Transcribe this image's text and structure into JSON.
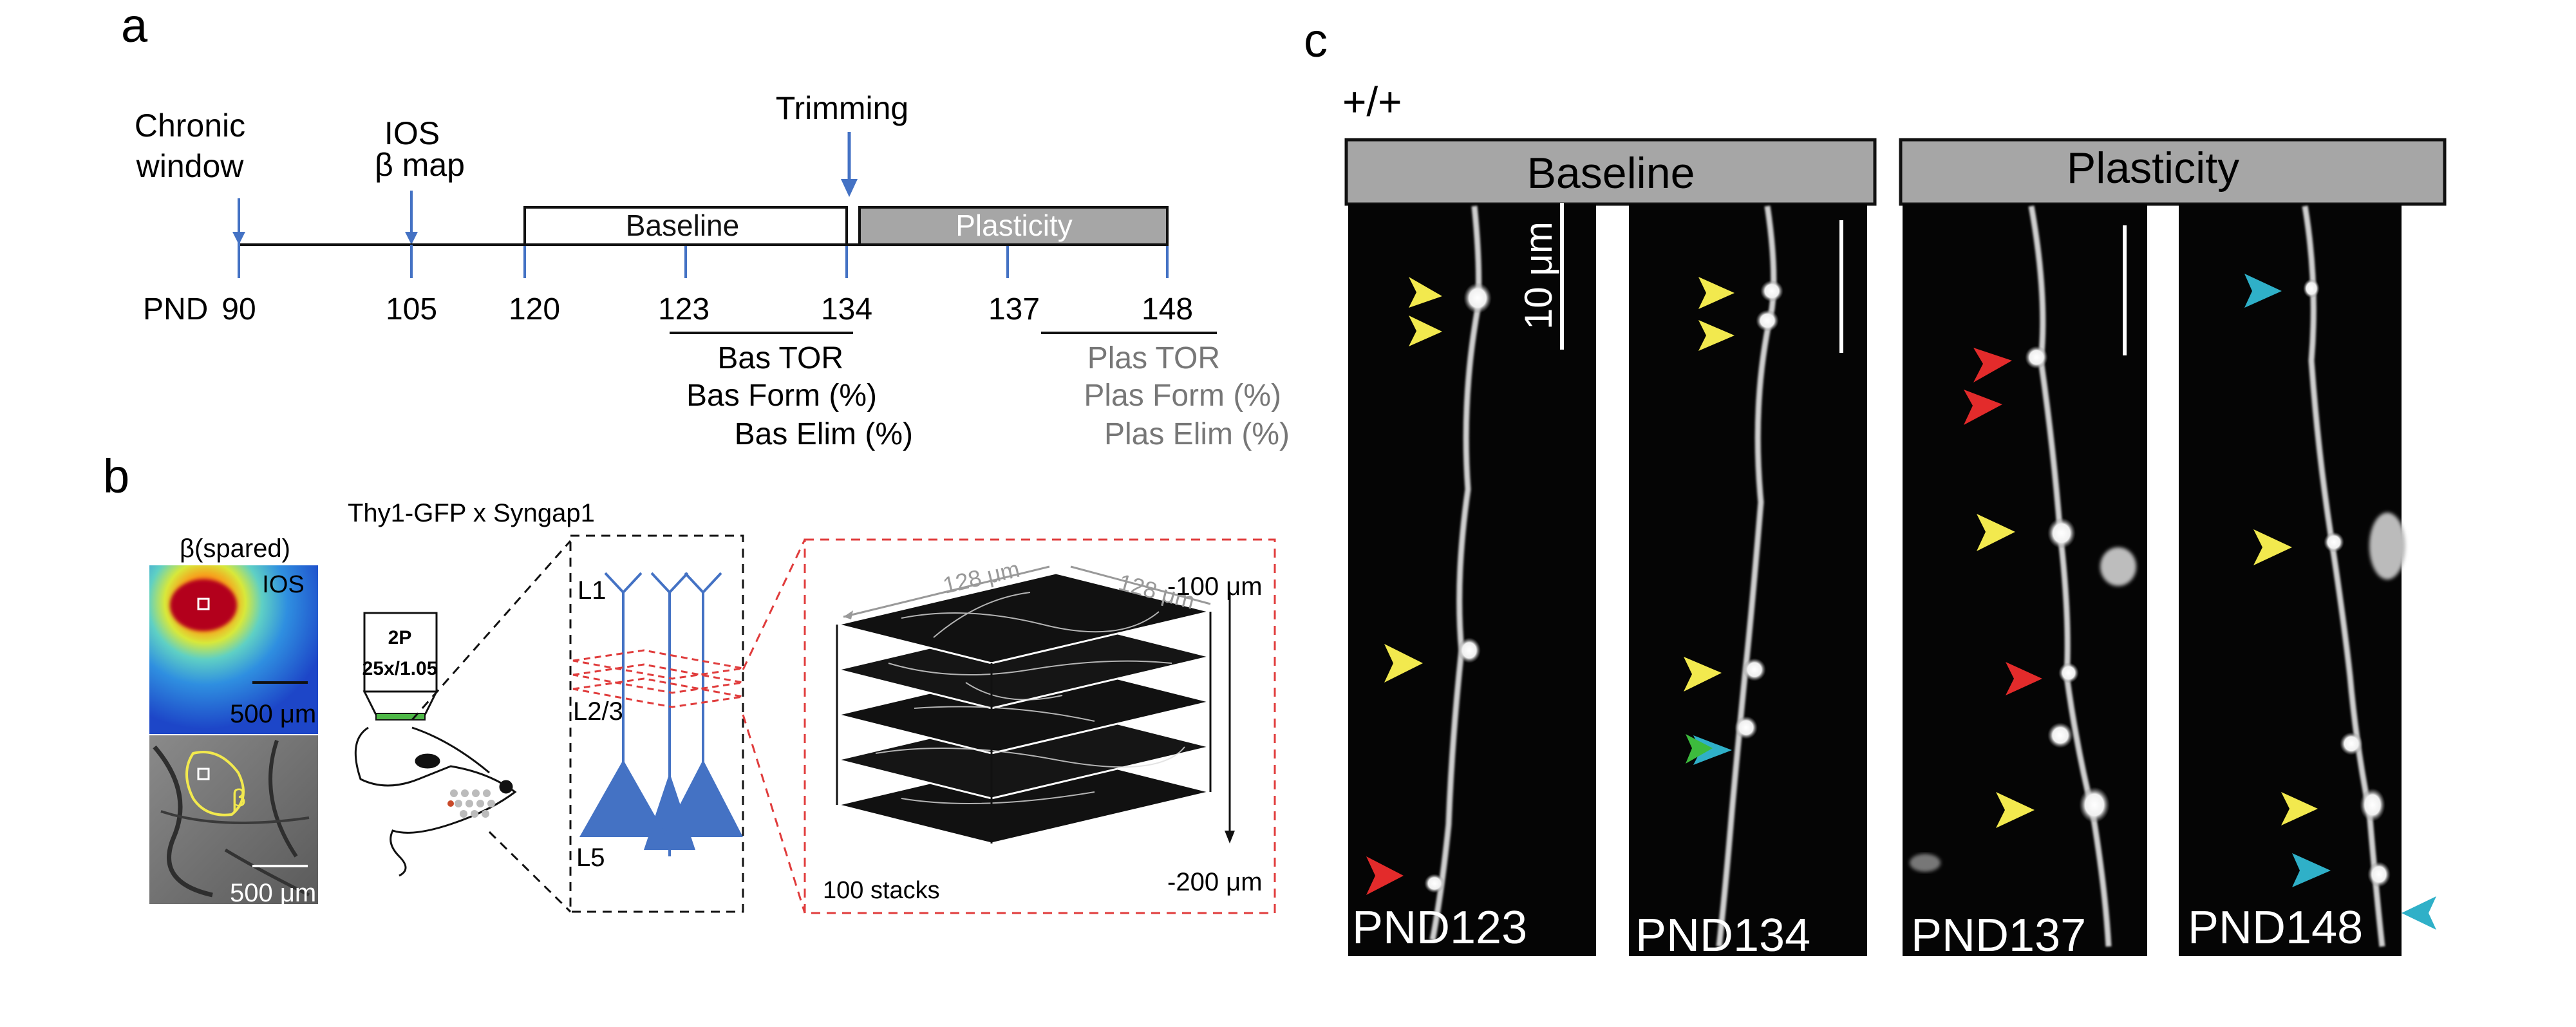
{
  "panel_a": {
    "letter": "a",
    "events": [
      {
        "label_lines": [
          "Chronic",
          "window"
        ],
        "day": 90
      },
      {
        "label_lines": [
          "IOS",
          "β map"
        ],
        "day": 105
      },
      {
        "label_lines": [
          "Trimming"
        ],
        "day": 134
      }
    ],
    "phases": [
      {
        "label": "Baseline",
        "start": 120,
        "end": 134,
        "fill": "#ffffff",
        "text_color": "#111111"
      },
      {
        "label": "Plasticity",
        "start": 134,
        "end": 148,
        "fill": "#a6a6a6",
        "text_color": "#ffffff"
      }
    ],
    "axis_prefix": "PND",
    "ticks": [
      "90",
      "105",
      "120",
      "123",
      "134",
      "137",
      "148"
    ],
    "bas_metrics": [
      "Bas TOR",
      "Bas Form (%)",
      "Bas Elim (%)"
    ],
    "plas_metrics": [
      "Plas TOR",
      "Plas Form (%)",
      "Plas Elim (%)"
    ],
    "accent_color": "#4472c4"
  },
  "panel_b": {
    "letter": "b",
    "ios_title": "β(spared)",
    "ios_label": "IOS",
    "beta_label": "β",
    "scale_label": "500 μm",
    "mouse_title": "Thy1-GFP x Syngap1",
    "objective_line1": "2P",
    "objective_line2": "25x/1.05",
    "layers": [
      "L1",
      "L2/3",
      "L5"
    ],
    "stack_dims": [
      "128 μm",
      "128 μm"
    ],
    "depth_top": "-100 μm",
    "depth_bottom": "-200 μm",
    "stacks_label": "100 stacks",
    "neuron_color": "#4472c4",
    "dash_color": "#e03c3c"
  },
  "panel_c": {
    "letter": "c",
    "genotype": "+/+",
    "groups": [
      "Baseline",
      "Plasticity"
    ],
    "scale_label": "10 μm",
    "images": [
      "PND123",
      "PND134",
      "PND137",
      "PND148"
    ],
    "arrow_colors": {
      "yellow": "#f2e94e",
      "red": "#e32b2b",
      "cyan": "#2fb0c8",
      "green": "#3dbb3d"
    }
  }
}
